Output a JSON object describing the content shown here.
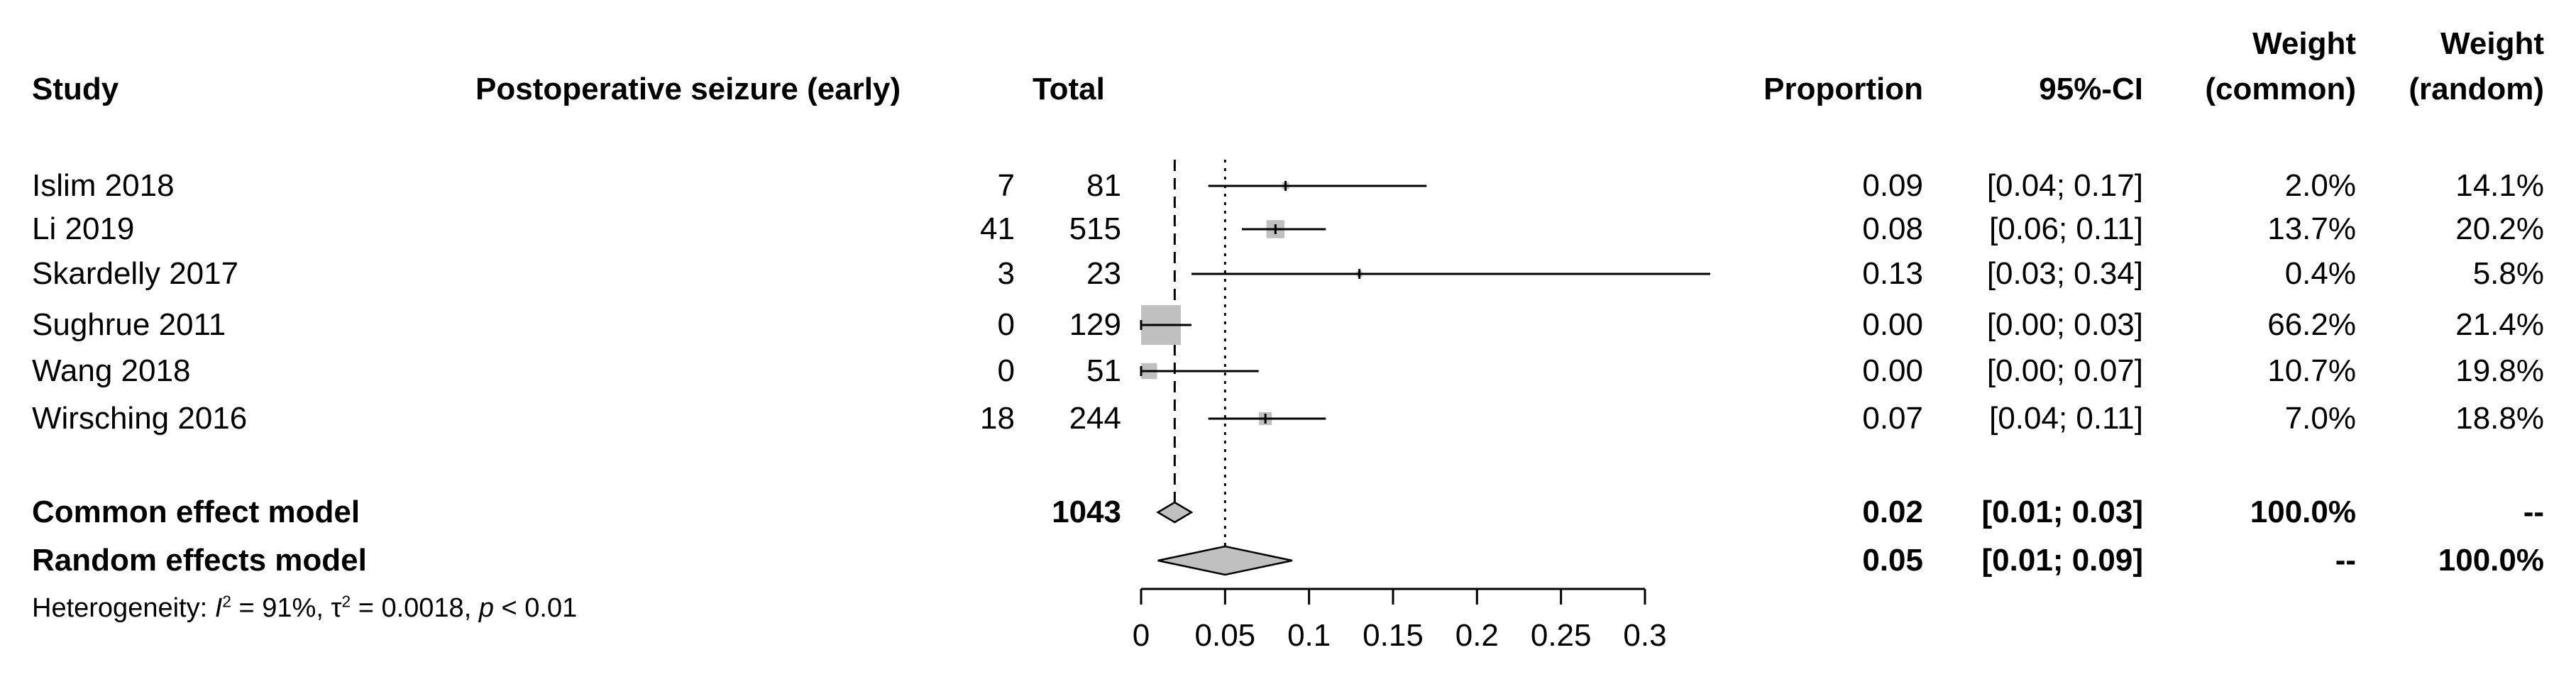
{
  "headers": {
    "study": "Study",
    "events": "Postoperative seizure (early)",
    "total": "Total",
    "proportion": "Proportion",
    "ci": "95%-CI",
    "weight_common_1": "Weight",
    "weight_common_2": "(common)",
    "weight_random_1": "Weight",
    "weight_random_2": "(random)"
  },
  "studies": [
    {
      "name": "Islim 2018",
      "events": "7",
      "total": "81",
      "proportion": "0.09",
      "ci": "[0.04; 0.17]",
      "w_common": "2.0%",
      "w_random": "14.1%"
    },
    {
      "name": "Li 2019",
      "events": "41",
      "total": "515",
      "proportion": "0.08",
      "ci": "[0.06; 0.11]",
      "w_common": "13.7%",
      "w_random": "20.2%"
    },
    {
      "name": "Skardelly 2017",
      "events": "3",
      "total": "23",
      "proportion": "0.13",
      "ci": "[0.03; 0.34]",
      "w_common": "0.4%",
      "w_random": "5.8%"
    },
    {
      "name": "Sughrue 2011",
      "events": "0",
      "total": "129",
      "proportion": "0.00",
      "ci": "[0.00; 0.03]",
      "w_common": "66.2%",
      "w_random": "21.4%"
    },
    {
      "name": "Wang 2018",
      "events": "0",
      "total": "51",
      "proportion": "0.00",
      "ci": "[0.00; 0.07]",
      "w_common": "10.7%",
      "w_random": "19.8%"
    },
    {
      "name": "Wirsching 2016",
      "events": "18",
      "total": "244",
      "proportion": "0.07",
      "ci": "[0.04; 0.11]",
      "w_common": "7.0%",
      "w_random": "18.8%"
    }
  ],
  "models": [
    {
      "name": "Common effect model",
      "total": "1043",
      "proportion": "0.02",
      "ci": "[0.01; 0.03]",
      "w_common": "100.0%",
      "w_random": "--"
    },
    {
      "name": "Random effects model",
      "total": "",
      "proportion": "0.05",
      "ci": "[0.01; 0.09]",
      "w_common": "--",
      "w_random": "100.0%"
    }
  ],
  "heterogeneity": {
    "prefix": "Heterogeneity: ",
    "i2_label": "I",
    "i2_sup": "2",
    "i2_value": " = 91%, ",
    "tau_label": "τ",
    "tau_sup": "2",
    "tau_value": " = 0.0018, ",
    "p_label": "p",
    "p_value": " < 0.01"
  },
  "chart_data": {
    "type": "forest",
    "xlim": [
      0,
      0.3
    ],
    "ticks": [
      0,
      0.05,
      0.1,
      0.15,
      0.2,
      0.25,
      0.3
    ],
    "tick_labels": [
      "0",
      "0.05",
      "0.1",
      "0.15",
      "0.2",
      "0.25",
      "0.3"
    ],
    "studies": [
      {
        "name": "Islim 2018",
        "estimate": 0.086,
        "lower": 0.04,
        "upper": 0.17,
        "weight_common": 2.0
      },
      {
        "name": "Li 2019",
        "estimate": 0.08,
        "lower": 0.06,
        "upper": 0.11,
        "weight_common": 13.7
      },
      {
        "name": "Skardelly 2017",
        "estimate": 0.13,
        "lower": 0.03,
        "upper": 0.34,
        "weight_common": 0.4
      },
      {
        "name": "Sughrue 2011",
        "estimate": 0.0,
        "lower": 0.0,
        "upper": 0.03,
        "weight_common": 66.2
      },
      {
        "name": "Wang 2018",
        "estimate": 0.0,
        "lower": 0.0,
        "upper": 0.07,
        "weight_common": 10.7
      },
      {
        "name": "Wirsching 2016",
        "estimate": 0.074,
        "lower": 0.04,
        "upper": 0.11,
        "weight_common": 7.0
      }
    ],
    "common_effect": {
      "estimate": 0.02,
      "lower": 0.01,
      "upper": 0.03
    },
    "random_effects": {
      "estimate": 0.05,
      "lower": 0.01,
      "upper": 0.09
    },
    "reference_lines": {
      "dashed_common": 0.02,
      "dotted_random": 0.05
    },
    "box_color": "#c0c0c0",
    "diamond_color": "#c0c0c0"
  }
}
